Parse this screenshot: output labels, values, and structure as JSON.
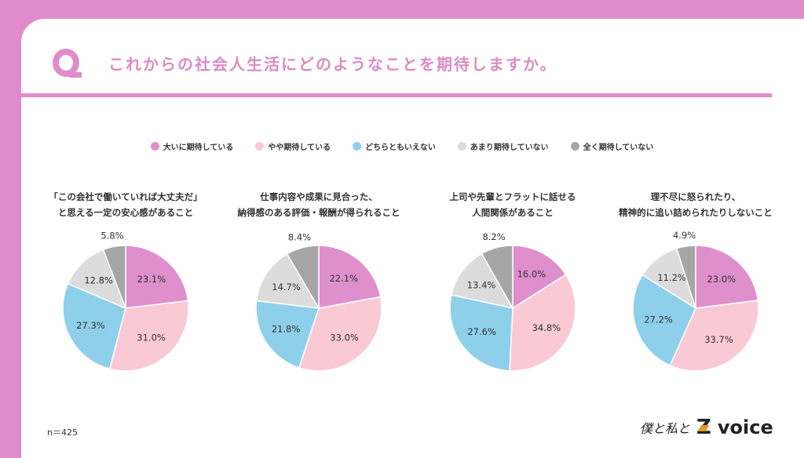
{
  "header": {
    "q_icon": "Q",
    "title": "これからの社会人生活にどのようなことを期待しますか。"
  },
  "sample": "n＝425",
  "logo": {
    "handwritten": "僕と私と",
    "brand_z": "Z",
    "brand_voice": "voice"
  },
  "chart_data": [
    {
      "type": "pie",
      "title_lines": [
        "「この会社で働いていれば大丈夫だ」",
        "と思える一定の安心感があること"
      ],
      "values": [
        23.1,
        31.0,
        27.3,
        12.8,
        5.8
      ]
    },
    {
      "type": "pie",
      "title_lines": [
        "仕事内容や成果に見合った、",
        "納得感のある評価・報酬が得られること"
      ],
      "values": [
        22.1,
        33.0,
        21.8,
        14.7,
        8.4
      ]
    },
    {
      "type": "pie",
      "title_lines": [
        "上司や先輩とフラットに話せる",
        "人間関係があること"
      ],
      "values": [
        16.0,
        34.8,
        27.6,
        13.4,
        8.2
      ]
    },
    {
      "type": "pie",
      "title_lines": [
        "理不尽に怒られたり、",
        "精神的に追い詰められたりしないこと"
      ],
      "values": [
        23.0,
        33.7,
        27.2,
        11.2,
        4.9
      ]
    }
  ],
  "legend": [
    {
      "label": "大いに期待している",
      "color": "#de8fcc"
    },
    {
      "label": "やや期待している",
      "color": "#f9c9d6"
    },
    {
      "label": "どちらともいえない",
      "color": "#8ecfea"
    },
    {
      "label": "あまり期待していない",
      "color": "#dcdcdc"
    },
    {
      "label": "全く期待していない",
      "color": "#a6a6a6"
    }
  ],
  "value_suffix": "%"
}
